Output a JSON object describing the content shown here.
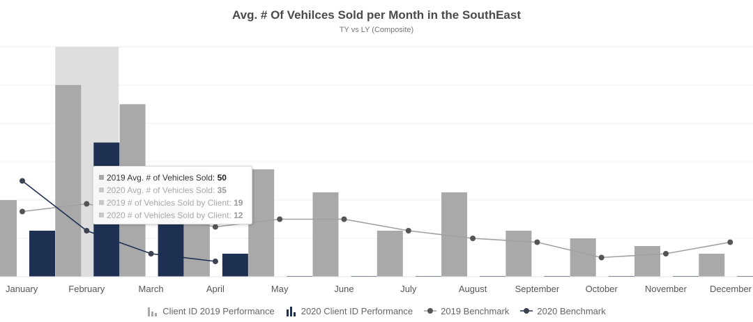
{
  "chart_data": {
    "type": "bar",
    "title": "Avg. # Of Vehilces Sold per Month in the SouthEast",
    "subtitle": "TY vs LY (Composite)",
    "categories": [
      "January",
      "February",
      "March",
      "April",
      "May",
      "June",
      "July",
      "August",
      "September",
      "October",
      "November",
      "December"
    ],
    "ylim": [
      0,
      60
    ],
    "grid": true,
    "legend_position": "bottom",
    "highlighted_category": "February",
    "series": [
      {
        "name": "Client ID 2019 Performance",
        "kind": "bar",
        "color": "#a9a9a9",
        "values": [
          20,
          50,
          45,
          28,
          28,
          22,
          12,
          22,
          12,
          10,
          8,
          6
        ]
      },
      {
        "name": "2020 Client ID Performance",
        "kind": "bar",
        "color": "#1f3152",
        "values": [
          12,
          35,
          19,
          6,
          0,
          0,
          0,
          0,
          0,
          0,
          0,
          0
        ]
      },
      {
        "name": "2019 Benchmark",
        "kind": "line",
        "color": "#a0a0a0",
        "marker_color": "#555555",
        "values": [
          17,
          19,
          16,
          13,
          15,
          15,
          12,
          10,
          9,
          5,
          6,
          9
        ]
      },
      {
        "name": "2020 Benchmark",
        "kind": "line",
        "color": "#1f3152",
        "marker_color": "#3c4250",
        "values": [
          25,
          12,
          6,
          4,
          null,
          null,
          null,
          null,
          null,
          null,
          null,
          null
        ]
      }
    ],
    "tooltip": {
      "rows": [
        {
          "label": "2019 Avg. # of Vehicles Sold:",
          "value": "50",
          "active": true
        },
        {
          "label": "2020 Avg. # of Vehicles Sold:",
          "value": "35",
          "active": false
        },
        {
          "label": "2019 # of Vehicles Sold by Client:",
          "value": "19",
          "active": false
        },
        {
          "label": "2020 # of Vehicles Sold by Client:",
          "value": "12",
          "active": false
        }
      ]
    }
  }
}
